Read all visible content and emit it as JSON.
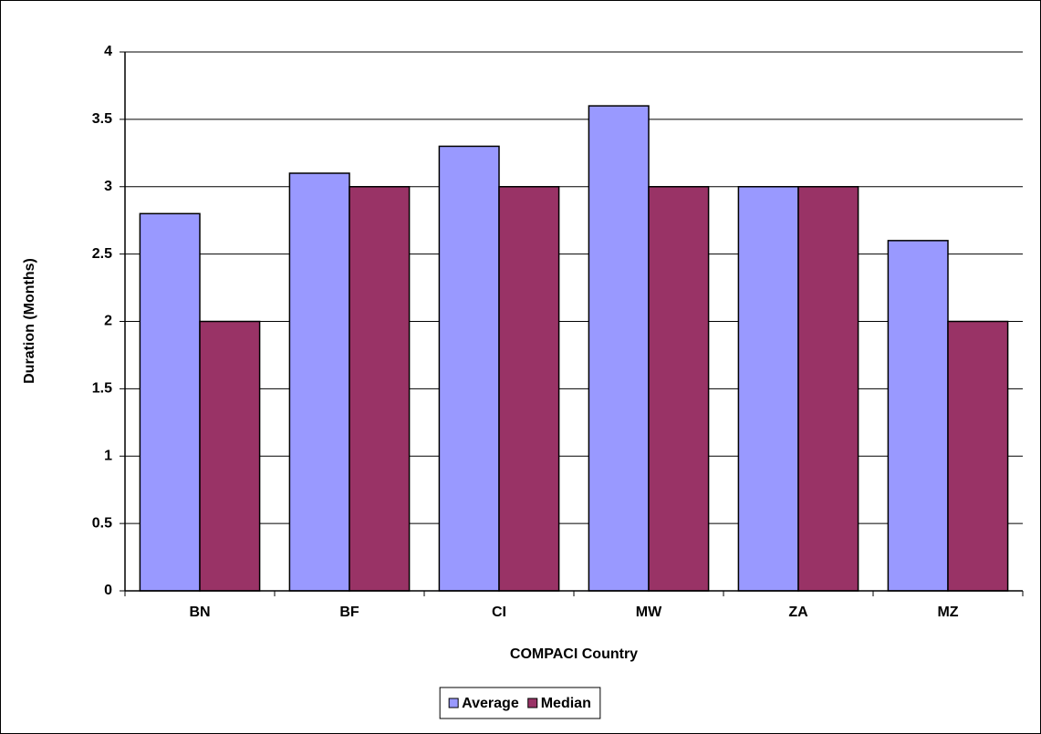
{
  "chart_data": {
    "type": "bar",
    "categories": [
      "BN",
      "BF",
      "CI",
      "MW",
      "ZA",
      "MZ"
    ],
    "series": [
      {
        "name": "Average",
        "color": "#9999ff",
        "values": [
          2.8,
          3.1,
          3.3,
          3.6,
          3.0,
          2.6
        ]
      },
      {
        "name": "Median",
        "color": "#993366",
        "values": [
          2,
          3,
          3,
          3,
          3,
          2
        ]
      }
    ],
    "ylim": [
      0,
      4
    ],
    "yticks": [
      0,
      0.5,
      1,
      1.5,
      2,
      2.5,
      3,
      3.5,
      4
    ],
    "y_label": "Duration (Months)",
    "x_label": "COMPACI Country",
    "grid": true,
    "legend": "bottom"
  }
}
